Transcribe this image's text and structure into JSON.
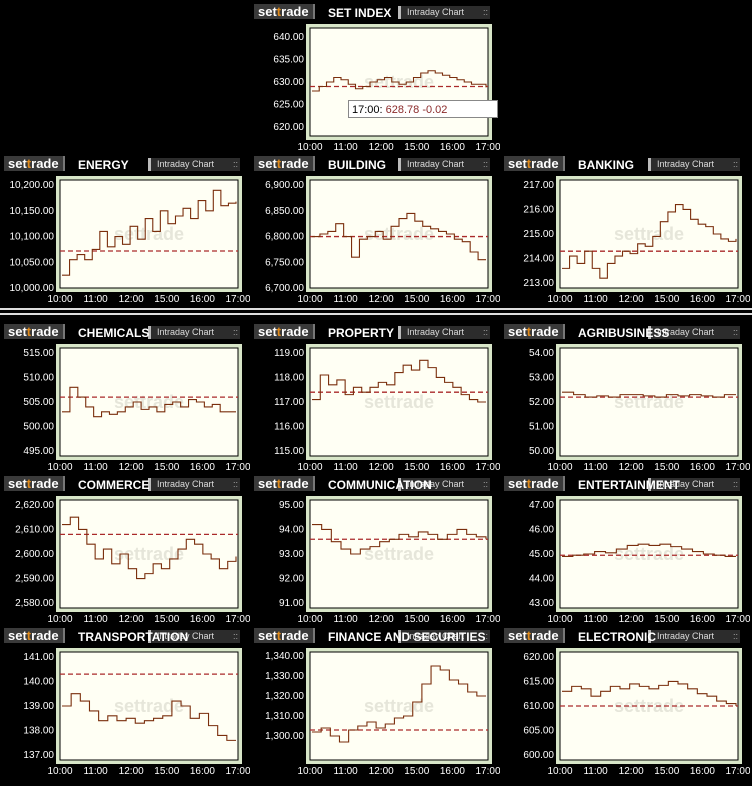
{
  "brand": {
    "pre": "set",
    "mid": "t",
    "post": "rade"
  },
  "button_label": "Intraday Chart",
  "tooltip": {
    "time": "17:00:",
    "value": "628.78 -0.02"
  },
  "colors": {
    "line": "#7a2e0c",
    "ref": "#aa2a2a",
    "plot_bg": "#fffff4",
    "frame": "#d8e6c8"
  },
  "x_ticks": [
    "10:00",
    "11:00",
    "12:00",
    "15:00",
    "16:00",
    "17:00"
  ],
  "charts": [
    {
      "title": "SET INDEX",
      "chart_data": {
        "type": "line",
        "ylim": [
          618,
          642
        ],
        "ticks": [
          640,
          635,
          630,
          625,
          620
        ],
        "tick_labels": [
          "640.00",
          "635.00",
          "630.00",
          "625.00",
          "620.00"
        ],
        "ref": 629,
        "values": [
          628,
          629,
          630,
          631,
          630.5,
          629.5,
          628.5,
          629,
          630,
          630.5,
          631,
          630,
          629.5,
          630,
          631,
          632,
          632.5,
          632,
          631.5,
          631,
          630.5,
          630,
          629.5,
          629.5,
          628.8
        ]
      }
    },
    {
      "title": "ENERGY",
      "chart_data": {
        "type": "line",
        "ylim": [
          10000,
          10210
        ],
        "ticks": [
          10200,
          10150,
          10100,
          10050,
          10000
        ],
        "tick_labels": [
          "10,200.00",
          "10,150.00",
          "10,100.00",
          "10,050.00",
          "10,000.00"
        ],
        "ref": 10072,
        "values": [
          10025,
          10055,
          10065,
          10055,
          10075,
          10110,
          10080,
          10100,
          10085,
          10120,
          10095,
          10135,
          10110,
          10150,
          10125,
          10140,
          10155,
          10135,
          10170,
          10150,
          10190,
          10160,
          10165,
          10168
        ]
      }
    },
    {
      "title": "BUILDING",
      "chart_data": {
        "type": "line",
        "ylim": [
          6700,
          6910
        ],
        "ticks": [
          6900,
          6850,
          6800,
          6750,
          6700
        ],
        "tick_labels": [
          "6,900.00",
          "6,850.00",
          "6,800.00",
          "6,750.00",
          "6,700.00"
        ],
        "ref": 6800,
        "values": [
          6800,
          6805,
          6810,
          6825,
          6800,
          6760,
          6795,
          6800,
          6810,
          6795,
          6820,
          6835,
          6845,
          6830,
          6820,
          6815,
          6810,
          6805,
          6795,
          6790,
          6770,
          6755,
          6755
        ]
      }
    },
    {
      "title": "BANKING",
      "chart_data": {
        "type": "line",
        "ylim": [
          212.8,
          217.2
        ],
        "ticks": [
          217,
          216,
          215,
          214,
          213
        ],
        "tick_labels": [
          "217.00",
          "216.00",
          "215.00",
          "214.00",
          "213.00"
        ],
        "ref": 214.3,
        "values": [
          213.6,
          214.1,
          213.8,
          214.3,
          213.6,
          213.2,
          213.8,
          214.1,
          214.3,
          214.2,
          214.6,
          214.5,
          214.9,
          215.5,
          215.9,
          216.2,
          216.0,
          215.6,
          215.4,
          215.3,
          215.0,
          214.8,
          214.7,
          214.8
        ]
      }
    },
    {
      "title": "CHEMICALS",
      "chart_data": {
        "type": "line",
        "ylim": [
          494,
          516
        ],
        "ticks": [
          515,
          510,
          505,
          500,
          495
        ],
        "tick_labels": [
          "515.00",
          "510.00",
          "505.00",
          "500.00",
          "495.00"
        ],
        "ref": 506,
        "values": [
          503,
          508,
          506,
          504,
          502,
          503,
          502.5,
          503,
          504,
          505,
          503.5,
          504,
          503,
          504.5,
          505,
          504,
          505.5,
          505,
          504,
          504.5,
          503,
          503,
          503
        ]
      }
    },
    {
      "title": "PROPERTY",
      "chart_data": {
        "type": "line",
        "ylim": [
          114.8,
          119.2
        ],
        "ticks": [
          119,
          118,
          117,
          116,
          115
        ],
        "tick_labels": [
          "119.00",
          "118.00",
          "117.00",
          "116.00",
          "115.00"
        ],
        "ref": 117.4,
        "values": [
          117.1,
          118.1,
          117.7,
          117.9,
          117.3,
          117.6,
          117.4,
          117.6,
          117.8,
          117.7,
          118.2,
          118.5,
          118.3,
          118.7,
          118.4,
          118.0,
          117.8,
          117.6,
          117.3,
          117.1,
          117.0,
          117.0
        ]
      }
    },
    {
      "title": "AGRIBUSINESS",
      "chart_data": {
        "type": "line",
        "ylim": [
          49.8,
          54.2
        ],
        "ticks": [
          54,
          53,
          52,
          51,
          50
        ],
        "tick_labels": [
          "54.00",
          "53.00",
          "52.00",
          "51.00",
          "50.00"
        ],
        "ref": 52.2,
        "values": [
          52.4,
          52.3,
          52.2,
          52.25,
          52.2,
          52.3,
          52.3,
          52.25,
          52.2,
          52.3,
          52.25,
          52.3,
          52.25,
          52.2,
          52.3,
          52.3
        ]
      }
    },
    {
      "title": "COMMERCE",
      "chart_data": {
        "type": "line",
        "ylim": [
          2578,
          2622
        ],
        "ticks": [
          2620,
          2610,
          2600,
          2590,
          2580
        ],
        "tick_labels": [
          "2,620.00",
          "2,610.00",
          "2,600.00",
          "2,590.00",
          "2,580.00"
        ],
        "ref": 2608,
        "values": [
          2612,
          2615,
          2610,
          2604,
          2598,
          2602,
          2596,
          2600,
          2594,
          2590,
          2592,
          2596,
          2594,
          2598,
          2602,
          2606,
          2604,
          2600,
          2598,
          2594,
          2597,
          2599
        ]
      }
    },
    {
      "title": "COMMUNICATION",
      "chart_data": {
        "type": "line",
        "ylim": [
          90.8,
          95.2
        ],
        "ticks": [
          95,
          94,
          93,
          92,
          91
        ],
        "tick_labels": [
          "95.00",
          "94.00",
          "93.00",
          "92.00",
          "91.00"
        ],
        "ref": 93.6,
        "values": [
          94.2,
          94.0,
          93.5,
          93.2,
          93.0,
          93.2,
          93.3,
          93.5,
          93.6,
          93.8,
          93.7,
          93.9,
          93.8,
          93.6,
          93.8,
          94.0,
          93.8,
          93.7,
          93.6
        ]
      }
    },
    {
      "title": "ENTERTAINMENT",
      "chart_data": {
        "type": "line",
        "ylim": [
          42.8,
          47.2
        ],
        "ticks": [
          47,
          46,
          45,
          44,
          43
        ],
        "tick_labels": [
          "47.00",
          "46.00",
          "45.00",
          "44.00",
          "43.00"
        ],
        "ref": 44.95,
        "values": [
          44.9,
          44.95,
          45.0,
          45.1,
          45.05,
          45.2,
          45.35,
          45.4,
          45.35,
          45.4,
          45.3,
          45.2,
          45.1,
          45.0,
          44.95,
          44.9,
          44.9
        ]
      }
    },
    {
      "title": "TRANSPORTATION",
      "chart_data": {
        "type": "line",
        "ylim": [
          136.8,
          141.2
        ],
        "ticks": [
          141,
          140,
          139,
          138,
          137
        ],
        "tick_labels": [
          "141.00",
          "140.00",
          "139.00",
          "138.00",
          "137.00"
        ],
        "ref": 140.3,
        "values": [
          139.0,
          139.5,
          139.2,
          138.8,
          138.4,
          138.6,
          138.4,
          138.5,
          138.3,
          138.4,
          138.5,
          138.6,
          139.2,
          139.0,
          138.5,
          138.7,
          138.2,
          137.8,
          137.6,
          137.6
        ]
      }
    },
    {
      "title": "FINANCE AND SECURITIES",
      "chart_data": {
        "type": "line",
        "ylim": [
          1288,
          1342
        ],
        "ticks": [
          1340,
          1330,
          1320,
          1310,
          1300
        ],
        "tick_labels": [
          "1,340.00",
          "1,330.00",
          "1,320.00",
          "1,310.00",
          "1,300.00"
        ],
        "ref": 1303,
        "values": [
          1302,
          1304,
          1300,
          1297,
          1303,
          1305,
          1307,
          1304,
          1306,
          1309,
          1310,
          1317,
          1326,
          1335,
          1333,
          1328,
          1326,
          1322,
          1320,
          1320
        ]
      }
    },
    {
      "title": "ELECTRONIC",
      "chart_data": {
        "type": "line",
        "ylim": [
          599,
          621
        ],
        "ticks": [
          620,
          615,
          610,
          605,
          600
        ],
        "tick_labels": [
          "620.00",
          "615.00",
          "610.00",
          "605.00",
          "600.00"
        ],
        "ref": 610,
        "values": [
          613,
          614,
          613.5,
          612,
          613,
          614,
          613.5,
          614.5,
          614,
          613.5,
          614.2,
          615,
          614.5,
          613.5,
          612.5,
          612,
          611,
          610.5,
          610
        ]
      }
    }
  ]
}
